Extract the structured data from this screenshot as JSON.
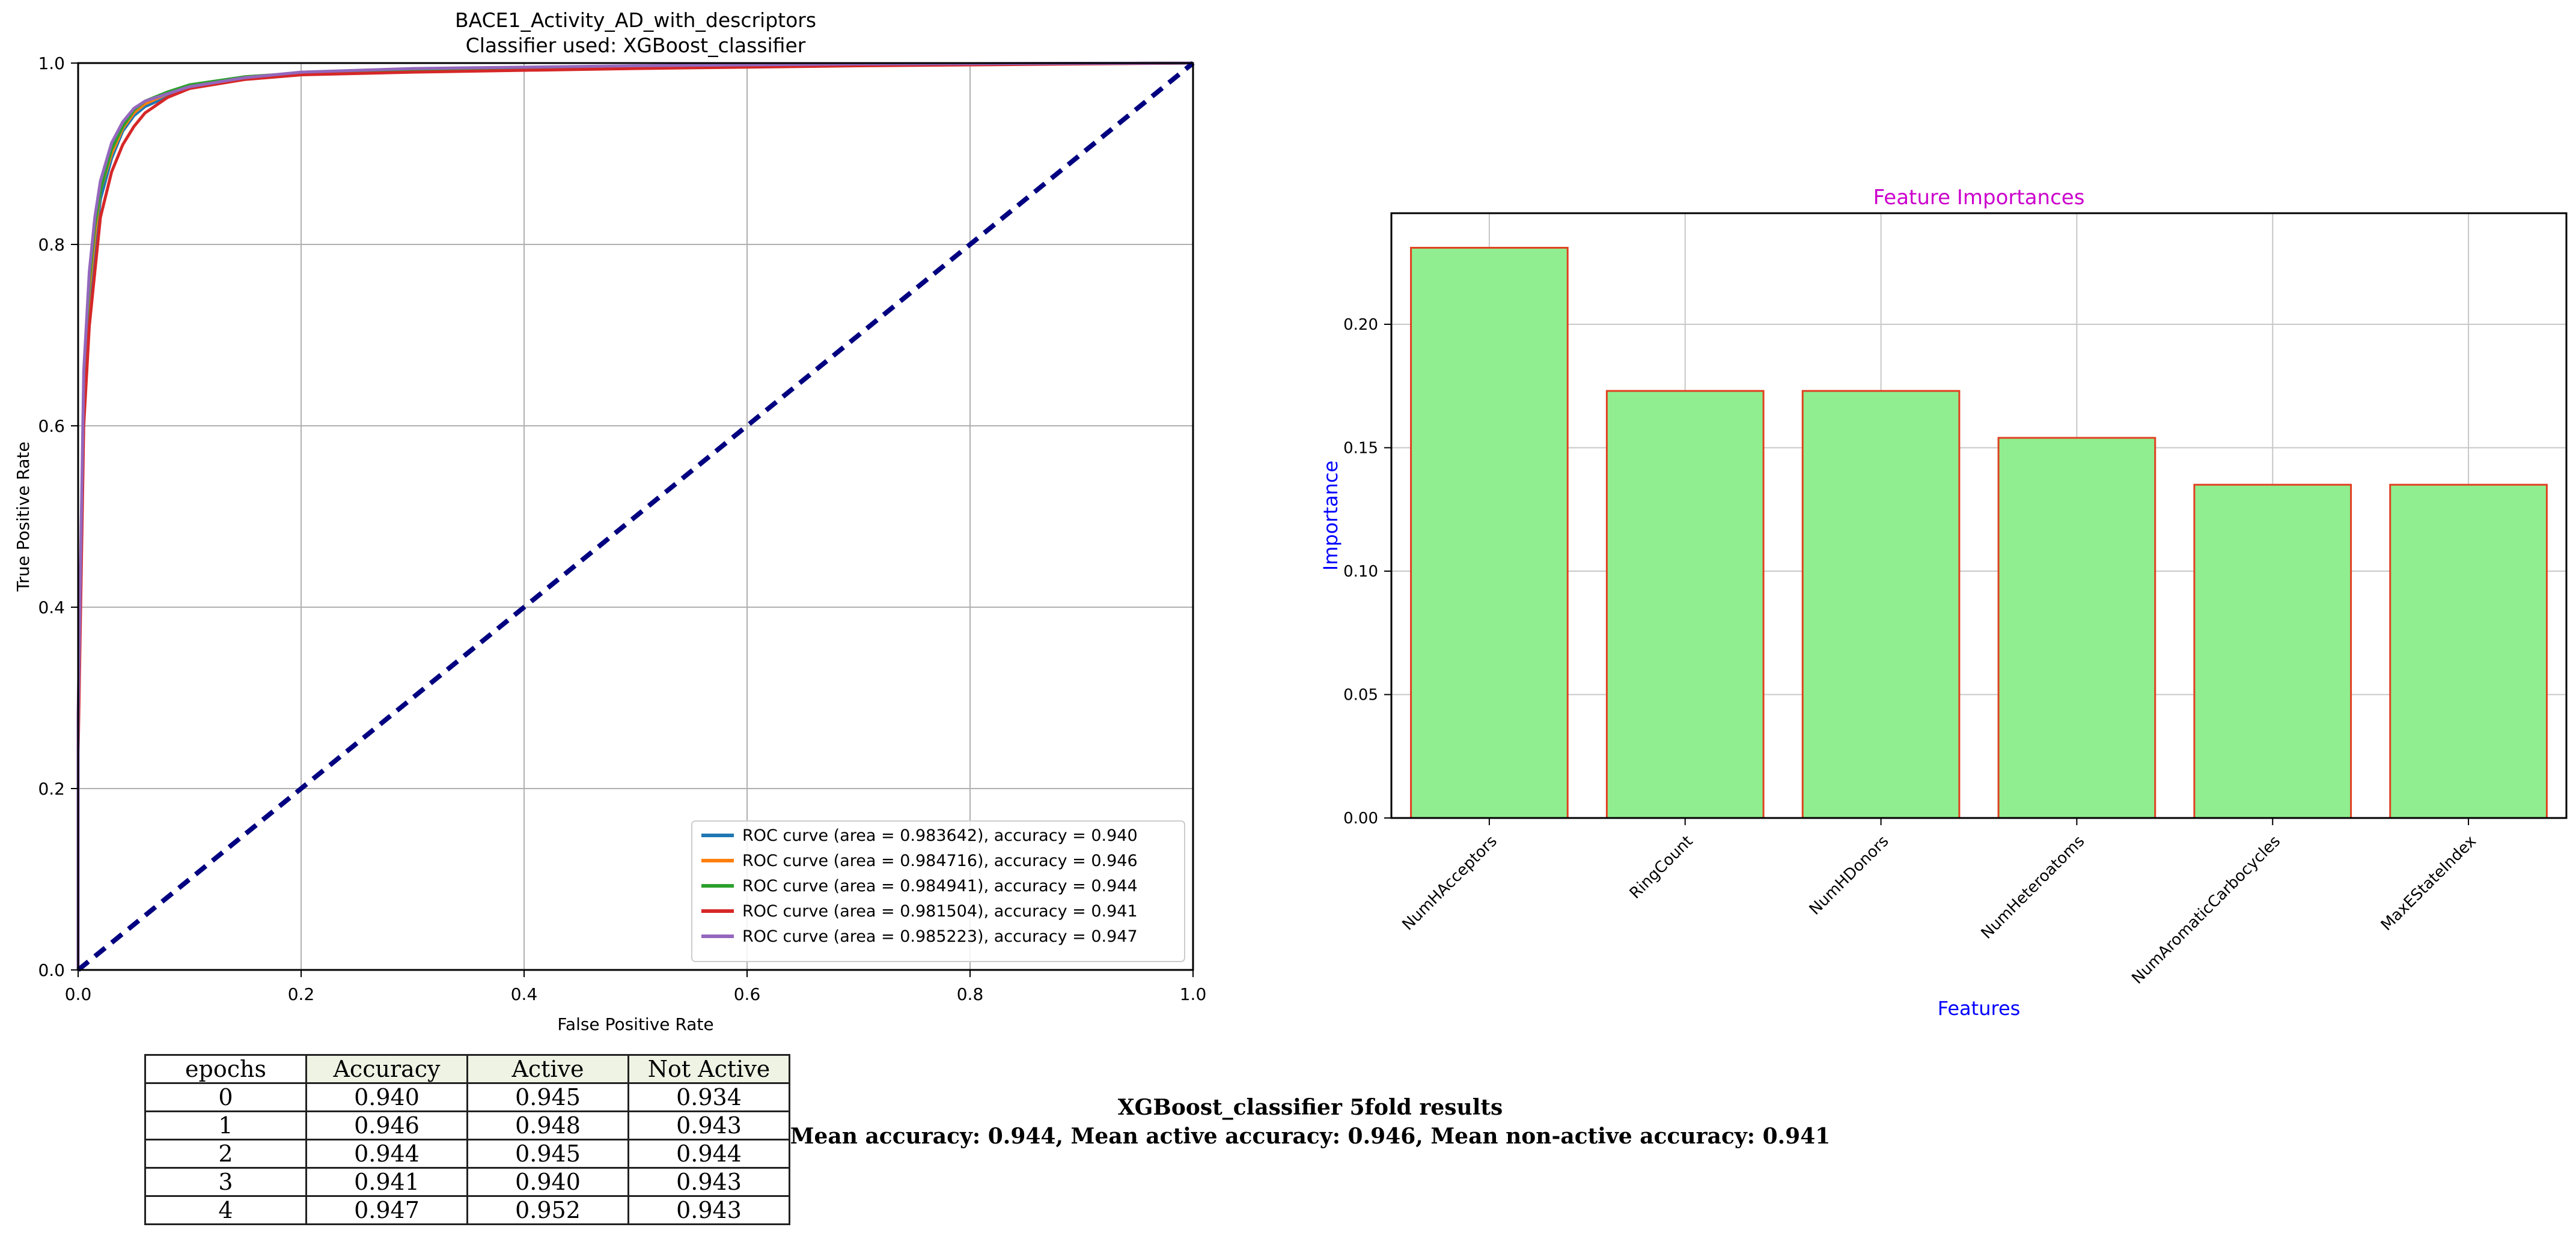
{
  "chart_data": [
    {
      "type": "line",
      "title": "BACE1_Activity_AD_with_descriptors",
      "subtitle": "Classifier used: XGBoost_classifier",
      "xlabel": "False Positive Rate",
      "ylabel": "True Positive Rate",
      "xlim": [
        0.0,
        1.0
      ],
      "ylim": [
        0.0,
        1.0
      ],
      "xticks": [
        "0.0",
        "0.2",
        "0.4",
        "0.6",
        "0.8",
        "1.0"
      ],
      "yticks": [
        "0.0",
        "0.2",
        "0.4",
        "0.6",
        "0.8",
        "1.0"
      ],
      "grid": true,
      "legend_position": "lower-right",
      "series": [
        {
          "name": "ROC curve (area = 0.983642), accuracy = 0.940",
          "color": "#1f77b4",
          "x": [
            0,
            0,
            0.005,
            0.01,
            0.015,
            0.02,
            0.03,
            0.04,
            0.05,
            0.06,
            0.08,
            0.1,
            0.15,
            0.2,
            0.3,
            0.5,
            0.7,
            1.0
          ],
          "y": [
            0,
            0.25,
            0.62,
            0.73,
            0.8,
            0.85,
            0.895,
            0.925,
            0.942,
            0.952,
            0.963,
            0.972,
            0.983,
            0.988,
            0.992,
            0.996,
            0.998,
            1.0
          ]
        },
        {
          "name": "ROC curve (area = 0.984716), accuracy = 0.946",
          "color": "#ff7f0e",
          "x": [
            0,
            0,
            0.005,
            0.01,
            0.015,
            0.02,
            0.03,
            0.04,
            0.05,
            0.06,
            0.08,
            0.1,
            0.15,
            0.2,
            0.3,
            0.5,
            0.7,
            1.0
          ],
          "y": [
            0,
            0.27,
            0.64,
            0.75,
            0.81,
            0.86,
            0.9,
            0.928,
            0.945,
            0.955,
            0.966,
            0.975,
            0.985,
            0.989,
            0.993,
            0.996,
            0.998,
            1.0
          ]
        },
        {
          "name": "ROC curve (area = 0.984941), accuracy = 0.944",
          "color": "#2ca02c",
          "x": [
            0,
            0,
            0.005,
            0.01,
            0.015,
            0.02,
            0.03,
            0.04,
            0.05,
            0.06,
            0.08,
            0.1,
            0.15,
            0.2,
            0.3,
            0.5,
            0.7,
            1.0
          ],
          "y": [
            0,
            0.26,
            0.65,
            0.76,
            0.82,
            0.86,
            0.905,
            0.93,
            0.948,
            0.958,
            0.968,
            0.976,
            0.985,
            0.989,
            0.993,
            0.996,
            0.998,
            1.0
          ]
        },
        {
          "name": "ROC curve (area = 0.981504), accuracy = 0.941",
          "color": "#d62728",
          "x": [
            0,
            0,
            0.005,
            0.01,
            0.015,
            0.02,
            0.03,
            0.04,
            0.05,
            0.06,
            0.08,
            0.1,
            0.15,
            0.2,
            0.3,
            0.5,
            0.7,
            1.0
          ],
          "y": [
            0,
            0.24,
            0.6,
            0.71,
            0.77,
            0.83,
            0.88,
            0.91,
            0.93,
            0.945,
            0.962,
            0.972,
            0.982,
            0.987,
            0.99,
            0.994,
            0.997,
            1.0
          ]
        },
        {
          "name": "ROC curve (area = 0.985223), accuracy = 0.947",
          "color": "#9467bd",
          "x": [
            0,
            0,
            0.005,
            0.01,
            0.015,
            0.02,
            0.03,
            0.04,
            0.05,
            0.06,
            0.08,
            0.1,
            0.15,
            0.2,
            0.3,
            0.5,
            0.7,
            1.0
          ],
          "y": [
            0,
            0.28,
            0.66,
            0.77,
            0.83,
            0.87,
            0.912,
            0.935,
            0.95,
            0.958,
            0.966,
            0.974,
            0.984,
            0.99,
            0.994,
            0.997,
            0.999,
            1.0
          ]
        },
        {
          "name": "",
          "color": "#000080",
          "dashed": true,
          "x": [
            0,
            1
          ],
          "y": [
            0,
            1
          ]
        }
      ]
    },
    {
      "type": "bar",
      "title": "Feature Importances",
      "title_color": "#cc00cc",
      "xlabel": "Features",
      "ylabel": "Importance",
      "label_color": "#0000ff",
      "bar_fill": "#90ee90",
      "bar_edge": "#e04020",
      "ylim": [
        0,
        0.245
      ],
      "yticks": [
        "0.00",
        "0.05",
        "0.10",
        "0.15",
        "0.20"
      ],
      "grid": true,
      "categories": [
        "NumHAcceptors",
        "RingCount",
        "NumHDonors",
        "NumHeteroatoms",
        "NumAromaticCarbocycles",
        "MaxEStateIndex"
      ],
      "values": [
        0.231,
        0.173,
        0.173,
        0.154,
        0.135,
        0.135
      ]
    }
  ],
  "results_table": {
    "headers": [
      "epochs",
      "Accuracy",
      "Active",
      "Not Active"
    ],
    "rows": [
      [
        "0",
        "0.940",
        "0.945",
        "0.934"
      ],
      [
        "1",
        "0.946",
        "0.948",
        "0.943"
      ],
      [
        "2",
        "0.944",
        "0.945",
        "0.944"
      ],
      [
        "3",
        "0.941",
        "0.940",
        "0.943"
      ],
      [
        "4",
        "0.947",
        "0.952",
        "0.943"
      ]
    ]
  },
  "summary": {
    "line1": "XGBoost_classifier 5fold results",
    "line2": "Mean accuracy: 0.944, Mean active accuracy: 0.946, Mean non-active accuracy: 0.941"
  }
}
